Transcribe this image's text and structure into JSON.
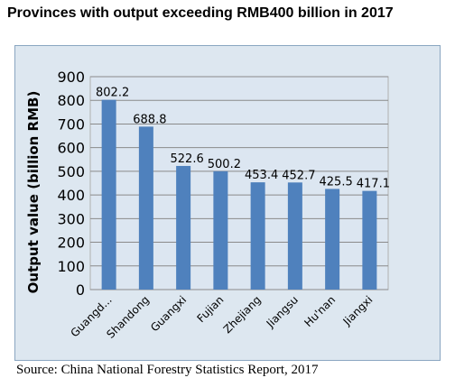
{
  "title": "Provinces with output exceeding RMB400 billion in 2017",
  "source": "Source: China National Forestry Statistics Report, 2017",
  "colors": {
    "bar": "#4f81bd",
    "plot_bg": "#dce6f1",
    "grid": "#8a8a8a"
  },
  "chart_data": {
    "type": "bar",
    "title": "Provinces with output exceeding RMB400 billion in 2017",
    "ylabel": "Output value (billion RMB)",
    "xlabel": "",
    "ylim": [
      0,
      900
    ],
    "yticks": [
      "0",
      "100",
      "200",
      "300",
      "400",
      "500",
      "600",
      "700",
      "800",
      "900"
    ],
    "grid": true,
    "categories": [
      "Guangd...",
      "Shandong",
      "Guangxi",
      "Fujian",
      "Zhejiang",
      "Jiangsu",
      "Hu'nan",
      "Jiangxi"
    ],
    "values": [
      802.2,
      688.8,
      522.6,
      500.2,
      453.4,
      452.7,
      425.5,
      417.1
    ],
    "data_labels": [
      "802.2",
      "688.8",
      "522.6",
      "500.2",
      "453.4",
      "452.7",
      "425.5",
      "417.1"
    ]
  }
}
